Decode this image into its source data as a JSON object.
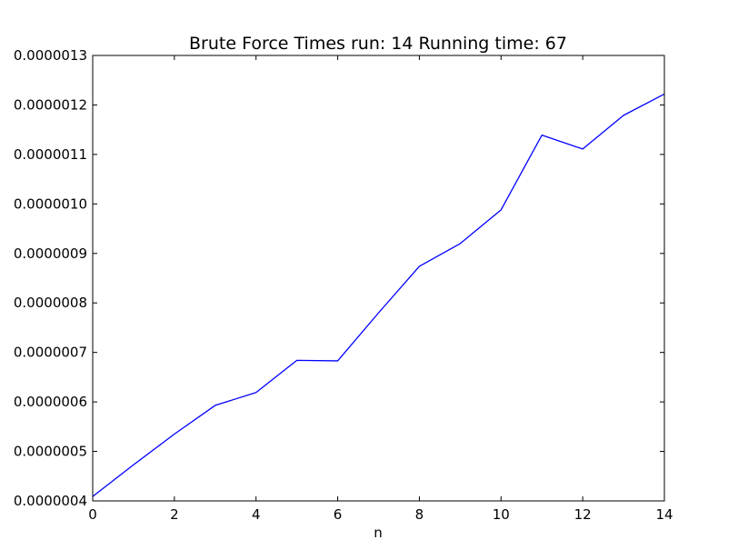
{
  "chart_data": {
    "type": "line",
    "title": "Brute Force Times run: 14 Running time: 67",
    "xlabel": "n",
    "ylabel": "",
    "xlim": [
      0,
      14
    ],
    "ylim": [
      4e-07,
      1.3e-06
    ],
    "xticks": [
      0,
      2,
      4,
      6,
      8,
      10,
      12,
      14
    ],
    "xtick_labels": [
      "0",
      "2",
      "4",
      "6",
      "8",
      "10",
      "12",
      "14"
    ],
    "yticks": [
      4e-07,
      5e-07,
      6e-07,
      7e-07,
      8e-07,
      9e-07,
      1e-06,
      1.1e-06,
      1.2e-06,
      1.3e-06
    ],
    "ytick_labels": [
      "0.0000004",
      "0.0000005",
      "0.0000006",
      "0.0000007",
      "0.0000008",
      "0.0000009",
      "0.0000010",
      "0.0000011",
      "0.0000012",
      "0.0000013"
    ],
    "grid": false,
    "legend": "none",
    "series": [
      {
        "color": "#0000ff",
        "x": [
          0,
          1,
          2,
          3,
          4,
          5,
          6,
          7,
          8,
          9,
          10,
          11,
          12,
          13,
          14
        ],
        "y": [
          4.09e-07,
          4.73e-07,
          5.35e-07,
          5.93e-07,
          6.19e-07,
          6.84e-07,
          6.83e-07,
          7.8e-07,
          8.74e-07,
          9.2e-07,
          9.88e-07,
          1.139e-06,
          1.111e-06,
          1.179e-06,
          1.222e-06
        ]
      }
    ]
  }
}
